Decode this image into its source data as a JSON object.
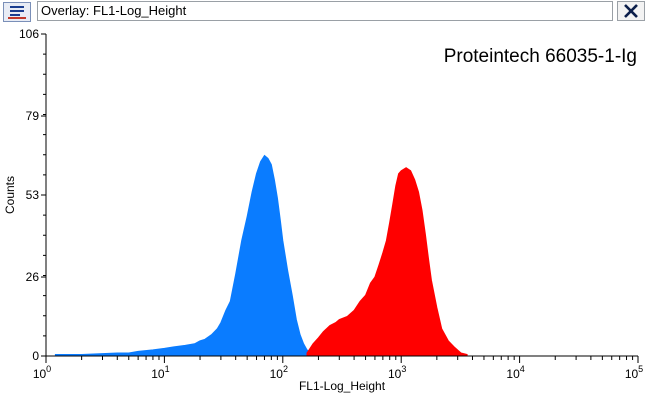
{
  "window": {
    "title": "Overlay: FL1-Log_Height",
    "icon": "histogram-app-icon",
    "close_icon": "close-x-icon"
  },
  "chart_data": {
    "type": "area",
    "annotation": "Proteintech 66035-1-Ig",
    "xlabel": "FL1-Log_Height",
    "ylabel": "Counts",
    "x_scale": "log",
    "xlim": [
      1,
      100000
    ],
    "ylim": [
      0,
      106
    ],
    "x_ticks": [
      {
        "value": 1,
        "base": "10",
        "exp": "0"
      },
      {
        "value": 10,
        "base": "10",
        "exp": "1"
      },
      {
        "value": 100,
        "base": "10",
        "exp": "2"
      },
      {
        "value": 1000,
        "base": "10",
        "exp": "3"
      },
      {
        "value": 10000,
        "base": "10",
        "exp": "4"
      },
      {
        "value": 100000,
        "base": "10",
        "exp": "5"
      }
    ],
    "y_ticks": [
      "0",
      "26",
      "53",
      "79",
      "106"
    ],
    "grid": false,
    "series": [
      {
        "color": "#0a7cff",
        "x": [
          1.2,
          2,
          3,
          4,
          5,
          6,
          8,
          10,
          12,
          15,
          18,
          20,
          22,
          25,
          28,
          30,
          33,
          36,
          40,
          45,
          50,
          55,
          60,
          65,
          70,
          75,
          80,
          85,
          90,
          95,
          100,
          110,
          120,
          130,
          140,
          150,
          160,
          180
        ],
        "y": [
          0.5,
          0.5,
          0.8,
          1,
          1,
          1.5,
          2,
          2.5,
          3,
          3.5,
          4,
          5,
          5.5,
          7,
          9,
          11,
          15,
          18,
          27,
          38,
          46,
          54,
          60,
          64,
          66,
          65,
          63,
          58,
          52,
          45,
          38,
          28,
          20,
          12,
          7,
          4,
          2,
          0.5
        ]
      },
      {
        "color": "#ff0000",
        "x": [
          160,
          180,
          200,
          220,
          250,
          280,
          300,
          350,
          400,
          450,
          500,
          550,
          600,
          650,
          700,
          750,
          800,
          850,
          900,
          950,
          1000,
          1100,
          1200,
          1300,
          1400,
          1500,
          1600,
          1700,
          1800,
          2000,
          2200,
          2500,
          2800,
          3200,
          3600
        ],
        "y": [
          1,
          4,
          6,
          8,
          10,
          11,
          12,
          13,
          15,
          18,
          20,
          24,
          26,
          30,
          34,
          38,
          44,
          50,
          56,
          60,
          61,
          62,
          61,
          58,
          54,
          48,
          40,
          32,
          25,
          16,
          9,
          5,
          3,
          1,
          0.5
        ]
      }
    ]
  }
}
